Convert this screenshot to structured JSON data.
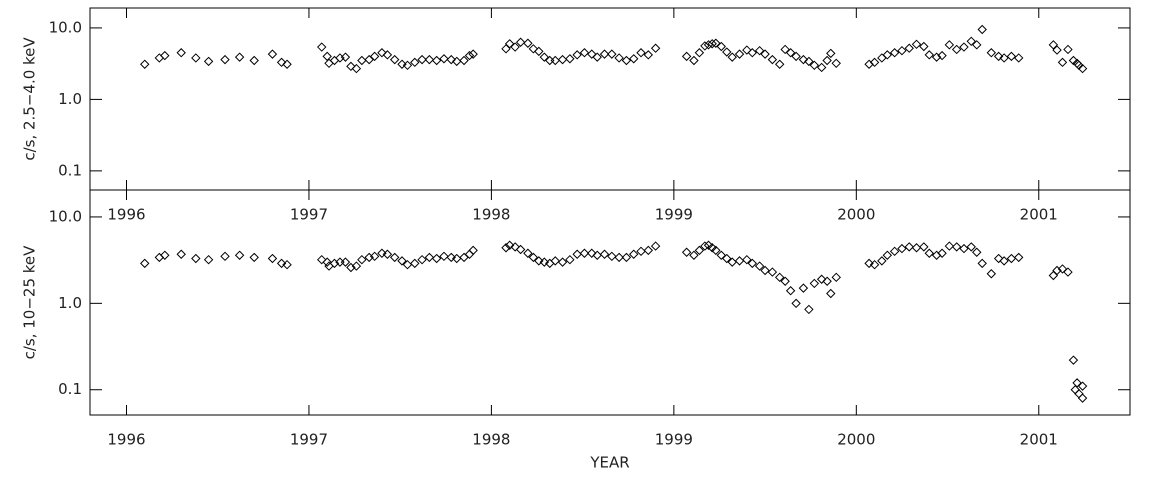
{
  "chart_data": [
    {
      "type": "scatter",
      "ylabel": "c/s, 2.5−4.0 keV",
      "log_y": true,
      "marker": "diamond",
      "color": "#000000",
      "xlim": [
        1995.8,
        2001.5
      ],
      "xticks": [
        1996,
        1997,
        1998,
        1999,
        2000,
        2001
      ],
      "ylim": [
        0.054,
        19
      ],
      "yticks": [
        {
          "value": 0.1,
          "label": "0.1"
        },
        {
          "value": 1,
          "label": "1.0"
        },
        {
          "value": 10,
          "label": "10.0"
        }
      ],
      "x": [
        1996.1,
        1996.18,
        1996.21,
        1996.3,
        1996.38,
        1996.45,
        1996.54,
        1996.62,
        1996.7,
        1996.8,
        1996.85,
        1996.88,
        1997.07,
        1997.1,
        1997.11,
        1997.14,
        1997.17,
        1997.2,
        1997.23,
        1997.26,
        1997.29,
        1997.33,
        1997.36,
        1997.4,
        1997.43,
        1997.47,
        1997.51,
        1997.54,
        1997.58,
        1997.62,
        1997.66,
        1997.7,
        1997.74,
        1997.78,
        1997.81,
        1997.85,
        1997.88,
        1997.9,
        1998.08,
        1998.1,
        1998.13,
        1998.16,
        1998.2,
        1998.23,
        1998.26,
        1998.29,
        1998.32,
        1998.35,
        1998.39,
        1998.43,
        1998.47,
        1998.51,
        1998.55,
        1998.58,
        1998.62,
        1998.66,
        1998.7,
        1998.74,
        1998.78,
        1998.82,
        1998.86,
        1998.9,
        1999.07,
        1999.11,
        1999.14,
        1999.17,
        1999.19,
        1999.21,
        1999.23,
        1999.26,
        1999.29,
        1999.32,
        1999.36,
        1999.4,
        1999.43,
        1999.47,
        1999.5,
        1999.54,
        1999.58,
        1999.61,
        1999.64,
        1999.67,
        1999.71,
        1999.74,
        1999.77,
        1999.81,
        1999.84,
        1999.86,
        1999.89,
        2000.07,
        2000.1,
        2000.14,
        2000.17,
        2000.21,
        2000.25,
        2000.29,
        2000.33,
        2000.37,
        2000.4,
        2000.44,
        2000.47,
        2000.51,
        2000.55,
        2000.59,
        2000.63,
        2000.66,
        2000.69,
        2000.74,
        2000.78,
        2000.81,
        2000.85,
        2000.89,
        2001.08,
        2001.1,
        2001.13,
        2001.16,
        2001.19,
        2001.21,
        2001.22,
        2001.24
      ],
      "values": [
        3.1,
        3.8,
        4.1,
        4.5,
        3.8,
        3.4,
        3.6,
        3.9,
        3.5,
        4.3,
        3.3,
        3.1,
        5.4,
        4.0,
        3.2,
        3.5,
        3.8,
        3.9,
        2.9,
        2.7,
        3.5,
        3.6,
        4.0,
        4.5,
        4.2,
        3.6,
        3.1,
        3.0,
        3.3,
        3.6,
        3.6,
        3.5,
        3.7,
        3.6,
        3.4,
        3.5,
        4.1,
        4.3,
        5.1,
        6.0,
        5.4,
        6.3,
        6.1,
        5.1,
        4.7,
        3.9,
        3.5,
        3.5,
        3.6,
        3.7,
        4.2,
        4.5,
        4.3,
        3.9,
        4.3,
        4.3,
        3.8,
        3.5,
        3.7,
        4.5,
        4.2,
        5.2,
        4.0,
        3.5,
        4.5,
        5.6,
        5.8,
        6.0,
        6.1,
        5.5,
        4.6,
        3.9,
        4.3,
        4.9,
        4.5,
        4.8,
        4.3,
        3.6,
        3.1,
        5.0,
        4.5,
        4.0,
        3.6,
        3.4,
        3.0,
        2.8,
        3.5,
        4.4,
        3.2,
        3.1,
        3.3,
        3.8,
        4.2,
        4.5,
        4.8,
        5.2,
        5.9,
        5.5,
        4.2,
        3.9,
        4.1,
        5.8,
        5.0,
        5.4,
        6.5,
        5.8,
        9.5,
        4.5,
        4.0,
        3.8,
        4.0,
        3.8,
        5.8,
        4.9,
        3.3,
        5.0,
        3.5,
        3.2,
        3.0,
        2.7
      ]
    },
    {
      "type": "scatter",
      "ylabel": "c/s, 10−25 keV",
      "xlabel": "YEAR",
      "log_y": true,
      "marker": "diamond",
      "color": "#000000",
      "xlim": [
        1995.8,
        2001.5
      ],
      "xticks": [
        1996,
        1997,
        1998,
        1999,
        2000,
        2001
      ],
      "ylim": [
        0.051,
        20.5
      ],
      "yticks": [
        {
          "value": 0.1,
          "label": "0.1"
        },
        {
          "value": 1,
          "label": "1.0"
        },
        {
          "value": 10,
          "label": "10.0"
        }
      ],
      "x": [
        1996.1,
        1996.18,
        1996.21,
        1996.3,
        1996.38,
        1996.45,
        1996.54,
        1996.62,
        1996.7,
        1996.8,
        1996.85,
        1996.88,
        1997.07,
        1997.1,
        1997.11,
        1997.14,
        1997.17,
        1997.2,
        1997.23,
        1997.26,
        1997.29,
        1997.33,
        1997.36,
        1997.4,
        1997.43,
        1997.47,
        1997.51,
        1997.54,
        1997.58,
        1997.62,
        1997.66,
        1997.7,
        1997.74,
        1997.78,
        1997.81,
        1997.85,
        1997.88,
        1997.9,
        1998.08,
        1998.1,
        1998.13,
        1998.16,
        1998.2,
        1998.23,
        1998.26,
        1998.29,
        1998.32,
        1998.35,
        1998.39,
        1998.43,
        1998.47,
        1998.51,
        1998.55,
        1998.58,
        1998.62,
        1998.66,
        1998.7,
        1998.74,
        1998.78,
        1998.82,
        1998.86,
        1998.9,
        1999.07,
        1999.11,
        1999.14,
        1999.17,
        1999.19,
        1999.21,
        1999.23,
        1999.26,
        1999.29,
        1999.32,
        1999.36,
        1999.4,
        1999.43,
        1999.47,
        1999.5,
        1999.54,
        1999.58,
        1999.61,
        1999.64,
        1999.67,
        1999.71,
        1999.74,
        1999.77,
        1999.81,
        1999.84,
        1999.86,
        1999.89,
        2000.07,
        2000.1,
        2000.14,
        2000.17,
        2000.21,
        2000.25,
        2000.29,
        2000.33,
        2000.37,
        2000.4,
        2000.44,
        2000.47,
        2000.51,
        2000.55,
        2000.59,
        2000.63,
        2000.66,
        2000.69,
        2000.74,
        2000.78,
        2000.81,
        2000.85,
        2000.89,
        2001.08,
        2001.1,
        2001.13,
        2001.16,
        2001.19,
        2001.2,
        2001.21,
        2001.22,
        2001.24,
        2001.24
      ],
      "values": [
        2.9,
        3.4,
        3.6,
        3.7,
        3.3,
        3.2,
        3.5,
        3.6,
        3.4,
        3.3,
        2.9,
        2.8,
        3.2,
        3.0,
        2.7,
        2.9,
        3.0,
        3.0,
        2.6,
        2.7,
        3.2,
        3.4,
        3.5,
        3.8,
        3.7,
        3.4,
        3.1,
        2.8,
        2.9,
        3.2,
        3.4,
        3.3,
        3.5,
        3.4,
        3.3,
        3.4,
        3.7,
        4.1,
        4.4,
        4.7,
        4.5,
        4.2,
        3.8,
        3.4,
        3.1,
        3.0,
        2.9,
        3.1,
        3.0,
        3.2,
        3.7,
        3.8,
        3.8,
        3.6,
        3.7,
        3.5,
        3.4,
        3.4,
        3.7,
        4.0,
        4.1,
        4.6,
        3.9,
        3.6,
        4.1,
        4.6,
        4.7,
        4.4,
        4.1,
        3.6,
        3.3,
        3.0,
        3.1,
        3.2,
        2.9,
        2.7,
        2.4,
        2.3,
        2.0,
        1.8,
        1.4,
        1.0,
        1.5,
        0.85,
        1.7,
        1.9,
        1.8,
        1.3,
        2.0,
        2.9,
        2.8,
        3.1,
        3.6,
        4.0,
        4.3,
        4.5,
        4.4,
        4.5,
        3.8,
        3.6,
        3.8,
        4.6,
        4.5,
        4.3,
        4.5,
        3.9,
        2.9,
        2.2,
        3.3,
        3.1,
        3.3,
        3.4,
        2.1,
        2.4,
        2.5,
        2.3,
        0.22,
        0.1,
        0.12,
        0.09,
        0.08,
        0.11
      ]
    }
  ]
}
